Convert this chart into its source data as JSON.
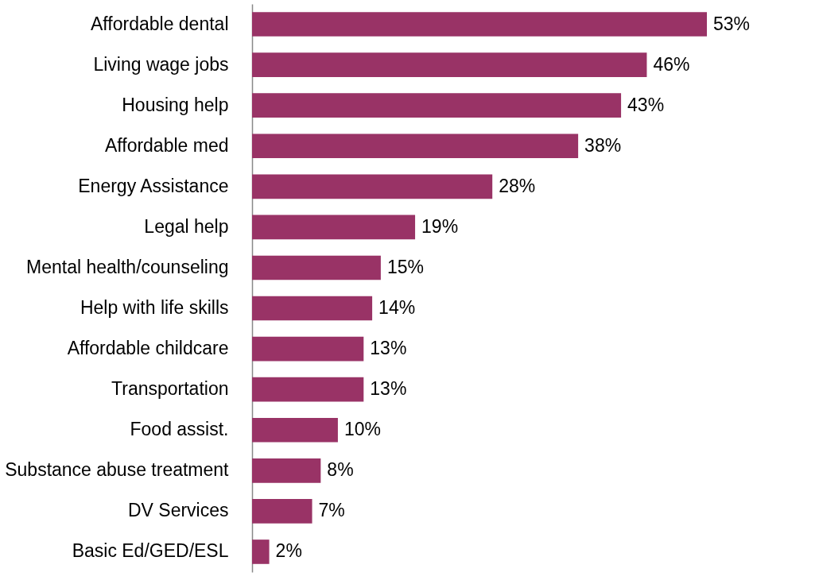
{
  "chart_data": {
    "type": "bar",
    "orientation": "horizontal",
    "categories": [
      "Affordable dental",
      "Living wage jobs",
      "Housing help",
      "Affordable med",
      "Energy Assistance",
      "Legal help",
      "Mental health/counseling",
      "Help with life skills",
      "Affordable childcare",
      "Transportation",
      "Food assist.",
      "Substance abuse treatment",
      "DV Services",
      "Basic Ed/GED/ESL"
    ],
    "values": [
      53,
      46,
      43,
      38,
      28,
      19,
      15,
      14,
      13,
      13,
      10,
      8,
      7,
      2
    ],
    "value_labels": [
      "53%",
      "46%",
      "43%",
      "38%",
      "28%",
      "19%",
      "15%",
      "14%",
      "13%",
      "13%",
      "10%",
      "8%",
      "7%",
      "2%"
    ],
    "color": "#993366"
  }
}
